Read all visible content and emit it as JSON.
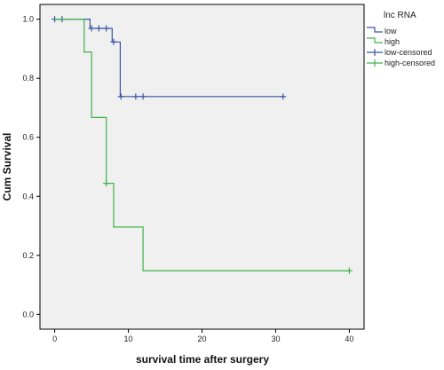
{
  "chart_data": {
    "type": "line",
    "title": "",
    "xlabel": "survival time after surgery",
    "ylabel": "Cum Survival",
    "xlim": [
      -2,
      42
    ],
    "ylim": [
      -0.05,
      1.05
    ],
    "xticks": [
      0,
      10,
      20,
      30,
      40
    ],
    "yticks": [
      0.0,
      0.2,
      0.4,
      0.6,
      0.8,
      1.0
    ],
    "ytick_labels": [
      "0.0",
      "0.2",
      "0.4",
      "0.6",
      "0.8",
      "1.0"
    ],
    "grid": false,
    "legend": {
      "title": "lnc RNA",
      "position": "right-outside",
      "entries": [
        "low",
        "high",
        "low-censored",
        "high-censored"
      ]
    },
    "series": [
      {
        "name": "low",
        "color": "#3b55a3",
        "step": [
          [
            0,
            1.0
          ],
          [
            4.8,
            1.0
          ],
          [
            4.8,
            0.969
          ],
          [
            7.8,
            0.969
          ],
          [
            7.8,
            0.923
          ],
          [
            8.9,
            0.923
          ],
          [
            8.9,
            0.738
          ],
          [
            31,
            0.738
          ]
        ],
        "censored": [
          [
            0,
            1.0
          ],
          [
            1,
            1.0
          ],
          [
            5,
            0.969
          ],
          [
            6,
            0.969
          ],
          [
            7,
            0.969
          ],
          [
            8,
            0.923
          ],
          [
            9,
            0.738
          ],
          [
            11,
            0.738
          ],
          [
            12,
            0.738
          ],
          [
            31,
            0.738
          ]
        ]
      },
      {
        "name": "high",
        "color": "#3fb24a",
        "step": [
          [
            0,
            1.0
          ],
          [
            4,
            1.0
          ],
          [
            4,
            0.889
          ],
          [
            5,
            0.889
          ],
          [
            5,
            0.667
          ],
          [
            7,
            0.667
          ],
          [
            7,
            0.444
          ],
          [
            8,
            0.444
          ],
          [
            8,
            0.296
          ],
          [
            12,
            0.296
          ],
          [
            12,
            0.148
          ],
          [
            40,
            0.148
          ]
        ],
        "censored": [
          [
            7,
            0.444
          ],
          [
            40,
            0.148
          ]
        ]
      }
    ]
  }
}
